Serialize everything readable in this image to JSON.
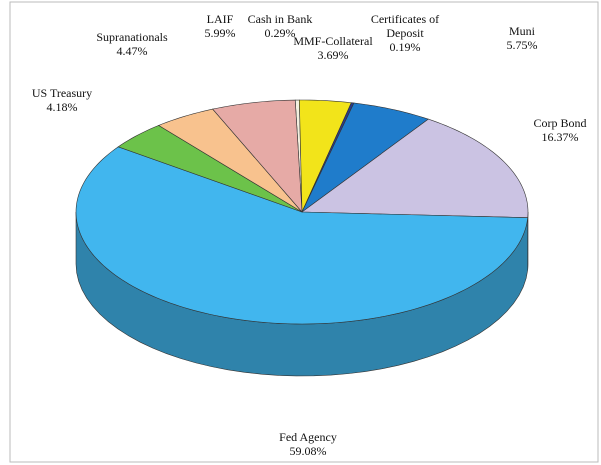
{
  "chart_data": {
    "type": "pie3d",
    "categories": [
      "Cash in Bank",
      "MMF-Collateral",
      "Certificates of Deposit",
      "Muni",
      "Corp Bond",
      "Fed Agency",
      "US Treasury",
      "Supranationals",
      "LAIF"
    ],
    "values": [
      0.29,
      3.69,
      0.19,
      5.75,
      16.37,
      59.08,
      4.18,
      4.47,
      5.99
    ],
    "value_labels": [
      "0.29%",
      "3.69%",
      "0.19%",
      "5.75%",
      "16.37%",
      "59.08%",
      "4.18%",
      "4.47%",
      "5.99%"
    ],
    "colors": [
      "#f4f0e0",
      "#f2e41a",
      "#2a3a8a",
      "#1f7ccb",
      "#cbc3e3",
      "#41b6ee",
      "#6cc24a",
      "#f8c28e",
      "#e6aaa6"
    ]
  }
}
